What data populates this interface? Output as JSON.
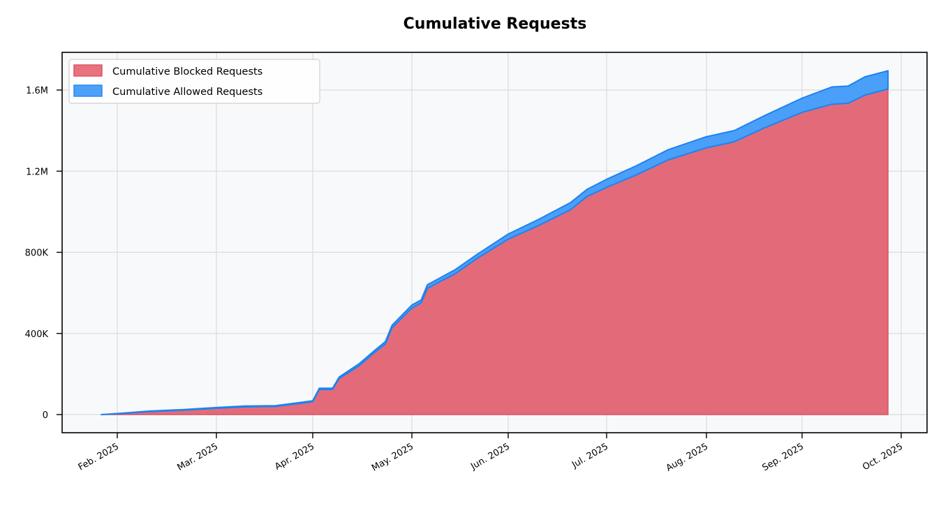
{
  "chart_data": {
    "type": "area",
    "stacked": true,
    "title": "Cumulative Requests",
    "xlabel": "",
    "ylabel": "",
    "ylim": [
      -80000,
      1780000
    ],
    "xlim": [
      "2025-01-12",
      "2025-10-08"
    ],
    "grid": true,
    "legend_position": "upper left",
    "y_ticks": [
      {
        "value": 0,
        "label": "0"
      },
      {
        "value": 400000,
        "label": "400K"
      },
      {
        "value": 800000,
        "label": "800K"
      },
      {
        "value": 1200000,
        "label": "1.2M"
      },
      {
        "value": 1600000,
        "label": "1.6M"
      }
    ],
    "x_ticks": [
      {
        "date": "2025-02-01",
        "label": "Feb. 2025"
      },
      {
        "date": "2025-03-01",
        "label": "Mar. 2025"
      },
      {
        "date": "2025-04-01",
        "label": "Apr. 2025"
      },
      {
        "date": "2025-05-01",
        "label": "May. 2025"
      },
      {
        "date": "2025-06-01",
        "label": "Jun. 2025"
      },
      {
        "date": "2025-07-01",
        "label": "Jul. 2025"
      },
      {
        "date": "2025-08-01",
        "label": "Aug. 2025"
      },
      {
        "date": "2025-09-01",
        "label": "Sep. 2025"
      },
      {
        "date": "2025-10-01",
        "label": "Oct. 2025"
      }
    ],
    "x": [
      "2025-01-27",
      "2025-02-01",
      "2025-02-10",
      "2025-02-20",
      "2025-03-01",
      "2025-03-10",
      "2025-03-20",
      "2025-03-28",
      "2025-04-01",
      "2025-04-03",
      "2025-04-07",
      "2025-04-09",
      "2025-04-15",
      "2025-04-20",
      "2025-04-23",
      "2025-04-25",
      "2025-05-01",
      "2025-05-04",
      "2025-05-06",
      "2025-05-15",
      "2025-05-22",
      "2025-06-01",
      "2025-06-10",
      "2025-06-20",
      "2025-06-25",
      "2025-07-01",
      "2025-07-10",
      "2025-07-20",
      "2025-08-01",
      "2025-08-10",
      "2025-08-20",
      "2025-09-01",
      "2025-09-10",
      "2025-09-15",
      "2025-09-20",
      "2025-09-27"
    ],
    "series": [
      {
        "name": "Cumulative Blocked Requests",
        "color": "#e05a6a",
        "values": [
          0,
          4000,
          14000,
          22000,
          31000,
          38000,
          40000,
          55000,
          63000,
          124000,
          124000,
          178000,
          240000,
          310000,
          348000,
          428000,
          525000,
          550000,
          623000,
          695000,
          770000,
          865000,
          930000,
          1010000,
          1075000,
          1120000,
          1180000,
          1255000,
          1315000,
          1345000,
          1415000,
          1490000,
          1530000,
          1535000,
          1575000,
          1605000
        ]
      },
      {
        "name": "Cumulative Allowed Requests",
        "color": "#1e88f5",
        "values": [
          0,
          1000,
          3000,
          3000,
          4000,
          4000,
          4000,
          5000,
          5000,
          6000,
          6000,
          7000,
          10000,
          10000,
          12000,
          12000,
          15000,
          15000,
          17000,
          20000,
          20000,
          25000,
          30000,
          35000,
          35000,
          40000,
          45000,
          50000,
          55000,
          55000,
          60000,
          70000,
          85000,
          85000,
          90000,
          90000
        ]
      }
    ]
  }
}
